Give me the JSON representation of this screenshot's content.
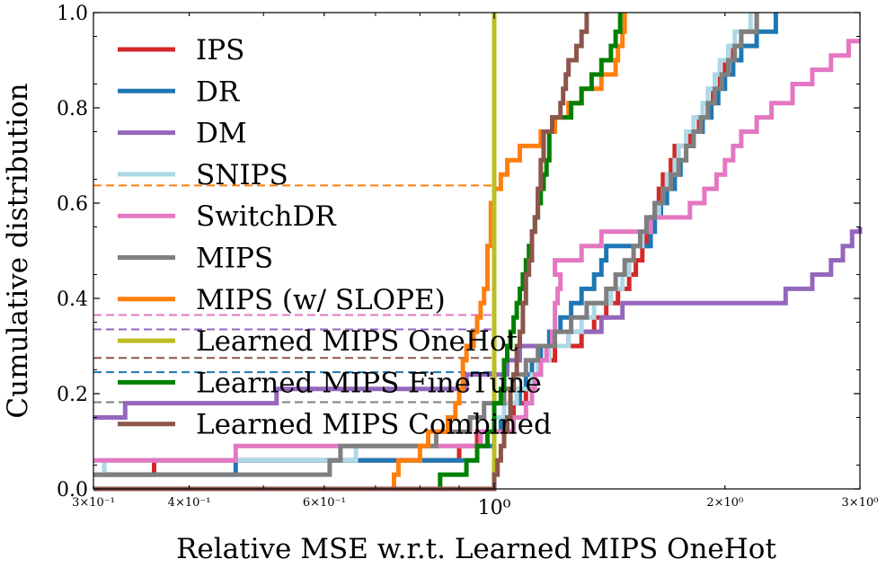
{
  "chart_data": {
    "type": "line",
    "xlabel": "Relative MSE w.r.t. Learned MIPS OneHot",
    "ylabel": "Cumulative distribution",
    "xscale": "log",
    "xlim": [
      0.3,
      3.0
    ],
    "ylim": [
      0.0,
      1.0
    ],
    "x_ticks": [
      {
        "value": 0.3,
        "label": "3×10⁻¹",
        "size": "small"
      },
      {
        "value": 0.4,
        "label": "4×10⁻¹",
        "size": "small"
      },
      {
        "value": 0.6,
        "label": "6×10⁻¹",
        "size": "small"
      },
      {
        "value": 1.0,
        "label": "10⁰",
        "size": "large"
      },
      {
        "value": 2.0,
        "label": "2×10⁰",
        "size": "small"
      },
      {
        "value": 3.0,
        "label": "3×10⁰",
        "size": "small"
      }
    ],
    "y_ticks": [
      "0.0",
      "0.2",
      "0.4",
      "0.6",
      "0.8",
      "1.0"
    ],
    "legend_position": "upper-left",
    "series": [
      {
        "name": "IPS",
        "color": "#d62728",
        "points": [
          [
            0.3,
            0.03
          ],
          [
            0.36,
            0.06
          ],
          [
            0.9,
            0.09
          ],
          [
            0.95,
            0.12
          ],
          [
            1.0,
            0.15
          ],
          [
            1.06,
            0.18
          ],
          [
            1.1,
            0.21
          ],
          [
            1.12,
            0.24
          ],
          [
            1.15,
            0.27
          ],
          [
            1.2,
            0.3
          ],
          [
            1.3,
            0.33
          ],
          [
            1.35,
            0.36
          ],
          [
            1.4,
            0.39
          ],
          [
            1.45,
            0.42
          ],
          [
            1.5,
            0.45
          ],
          [
            1.53,
            0.48
          ],
          [
            1.56,
            0.51
          ],
          [
            1.58,
            0.54
          ],
          [
            1.6,
            0.57
          ],
          [
            1.62,
            0.6
          ],
          [
            1.64,
            0.63
          ],
          [
            1.66,
            0.66
          ],
          [
            1.7,
            0.69
          ],
          [
            1.72,
            0.72
          ],
          [
            1.8,
            0.75
          ],
          [
            1.85,
            0.78
          ],
          [
            1.9,
            0.81
          ],
          [
            1.93,
            0.84
          ],
          [
            1.97,
            0.87
          ],
          [
            2.0,
            0.9
          ],
          [
            2.05,
            0.93
          ],
          [
            2.1,
            0.96
          ],
          [
            2.2,
            1.0
          ]
        ]
      },
      {
        "name": "DR",
        "color": "#1f77b4",
        "points": [
          [
            0.3,
            0.03
          ],
          [
            0.46,
            0.06
          ],
          [
            0.95,
            0.09
          ],
          [
            1.0,
            0.12
          ],
          [
            1.02,
            0.15
          ],
          [
            1.05,
            0.18
          ],
          [
            1.08,
            0.21
          ],
          [
            1.1,
            0.24
          ],
          [
            1.12,
            0.27
          ],
          [
            1.15,
            0.3
          ],
          [
            1.18,
            0.33
          ],
          [
            1.22,
            0.36
          ],
          [
            1.26,
            0.39
          ],
          [
            1.3,
            0.42
          ],
          [
            1.35,
            0.45
          ],
          [
            1.38,
            0.48
          ],
          [
            1.4,
            0.51
          ],
          [
            1.6,
            0.54
          ],
          [
            1.62,
            0.57
          ],
          [
            1.65,
            0.6
          ],
          [
            1.68,
            0.63
          ],
          [
            1.72,
            0.66
          ],
          [
            1.75,
            0.69
          ],
          [
            1.78,
            0.72
          ],
          [
            1.82,
            0.75
          ],
          [
            1.87,
            0.78
          ],
          [
            1.92,
            0.81
          ],
          [
            1.96,
            0.84
          ],
          [
            2.0,
            0.87
          ],
          [
            2.05,
            0.9
          ],
          [
            2.1,
            0.93
          ],
          [
            2.2,
            0.96
          ],
          [
            2.33,
            1.0
          ]
        ]
      },
      {
        "name": "DM",
        "color": "#9467bd",
        "points": [
          [
            0.3,
            0.15
          ],
          [
            0.31,
            0.15
          ],
          [
            0.33,
            0.18
          ],
          [
            0.52,
            0.21
          ],
          [
            0.92,
            0.24
          ],
          [
            1.04,
            0.27
          ],
          [
            1.08,
            0.3
          ],
          [
            1.25,
            0.33
          ],
          [
            1.38,
            0.36
          ],
          [
            1.45,
            0.36
          ],
          [
            1.47,
            0.39
          ],
          [
            2.4,
            0.42
          ],
          [
            2.6,
            0.45
          ],
          [
            2.75,
            0.48
          ],
          [
            2.85,
            0.51
          ],
          [
            2.93,
            0.54
          ],
          [
            3.0,
            0.55
          ]
        ]
      },
      {
        "name": "SNIPS",
        "color": "#add8e6",
        "points": [
          [
            0.3,
            0.03
          ],
          [
            0.31,
            0.06
          ],
          [
            0.66,
            0.09
          ],
          [
            0.96,
            0.12
          ],
          [
            1.0,
            0.15
          ],
          [
            1.03,
            0.18
          ],
          [
            1.07,
            0.21
          ],
          [
            1.12,
            0.24
          ],
          [
            1.14,
            0.27
          ],
          [
            1.18,
            0.3
          ],
          [
            1.25,
            0.33
          ],
          [
            1.3,
            0.36
          ],
          [
            1.35,
            0.39
          ],
          [
            1.42,
            0.42
          ],
          [
            1.47,
            0.45
          ],
          [
            1.5,
            0.48
          ],
          [
            1.52,
            0.51
          ],
          [
            1.56,
            0.54
          ],
          [
            1.6,
            0.57
          ],
          [
            1.64,
            0.6
          ],
          [
            1.66,
            0.63
          ],
          [
            1.68,
            0.66
          ],
          [
            1.72,
            0.69
          ],
          [
            1.74,
            0.72
          ],
          [
            1.78,
            0.75
          ],
          [
            1.82,
            0.78
          ],
          [
            1.87,
            0.81
          ],
          [
            1.9,
            0.84
          ],
          [
            1.94,
            0.87
          ],
          [
            1.97,
            0.9
          ],
          [
            2.02,
            0.93
          ],
          [
            2.06,
            0.96
          ],
          [
            2.16,
            1.0
          ]
        ]
      },
      {
        "name": "SwitchDR",
        "color": "#e377c2",
        "points": [
          [
            0.3,
            0.06
          ],
          [
            0.46,
            0.09
          ],
          [
            0.96,
            0.12
          ],
          [
            1.06,
            0.15
          ],
          [
            1.1,
            0.18
          ],
          [
            1.12,
            0.21
          ],
          [
            1.13,
            0.24
          ],
          [
            1.15,
            0.27
          ],
          [
            1.17,
            0.3
          ],
          [
            1.19,
            0.33
          ],
          [
            1.2,
            0.36
          ],
          [
            1.2,
            0.39
          ],
          [
            1.21,
            0.42
          ],
          [
            1.22,
            0.45
          ],
          [
            1.2,
            0.48
          ],
          [
            1.3,
            0.51
          ],
          [
            1.38,
            0.54
          ],
          [
            1.6,
            0.57
          ],
          [
            1.8,
            0.6
          ],
          [
            1.88,
            0.63
          ],
          [
            1.95,
            0.66
          ],
          [
            2.0,
            0.69
          ],
          [
            2.05,
            0.72
          ],
          [
            2.1,
            0.75
          ],
          [
            2.2,
            0.78
          ],
          [
            2.3,
            0.81
          ],
          [
            2.45,
            0.85
          ],
          [
            2.6,
            0.88
          ],
          [
            2.75,
            0.91
          ],
          [
            2.9,
            0.94
          ],
          [
            3.0,
            0.94
          ]
        ]
      },
      {
        "name": "MIPS",
        "color": "#7f7f7f",
        "points": [
          [
            0.3,
            0.03
          ],
          [
            0.3,
            0.03
          ],
          [
            0.61,
            0.06
          ],
          [
            0.63,
            0.09
          ],
          [
            0.84,
            0.12
          ],
          [
            0.93,
            0.15
          ],
          [
            0.97,
            0.18
          ],
          [
            1.03,
            0.21
          ],
          [
            1.06,
            0.24
          ],
          [
            1.1,
            0.27
          ],
          [
            1.14,
            0.3
          ],
          [
            1.2,
            0.33
          ],
          [
            1.26,
            0.36
          ],
          [
            1.32,
            0.39
          ],
          [
            1.4,
            0.42
          ],
          [
            1.44,
            0.45
          ],
          [
            1.48,
            0.48
          ],
          [
            1.52,
            0.51
          ],
          [
            1.55,
            0.54
          ],
          [
            1.58,
            0.57
          ],
          [
            1.62,
            0.6
          ],
          [
            1.66,
            0.63
          ],
          [
            1.7,
            0.66
          ],
          [
            1.74,
            0.69
          ],
          [
            1.78,
            0.72
          ],
          [
            1.82,
            0.75
          ],
          [
            1.86,
            0.78
          ],
          [
            1.9,
            0.81
          ],
          [
            1.94,
            0.84
          ],
          [
            1.98,
            0.87
          ],
          [
            2.02,
            0.9
          ],
          [
            2.06,
            0.93
          ],
          [
            2.1,
            0.96
          ],
          [
            2.2,
            1.0
          ]
        ]
      },
      {
        "name": "MIPS (w/ SLOPE)",
        "color": "#ff7f0e",
        "points": [
          [
            0.3,
            0.0
          ],
          [
            0.73,
            0.0
          ],
          [
            0.74,
            0.03
          ],
          [
            0.75,
            0.06
          ],
          [
            0.8,
            0.09
          ],
          [
            0.82,
            0.12
          ],
          [
            0.87,
            0.15
          ],
          [
            0.89,
            0.18
          ],
          [
            0.9,
            0.21
          ],
          [
            0.91,
            0.24
          ],
          [
            0.91,
            0.27
          ],
          [
            0.92,
            0.3
          ],
          [
            0.94,
            0.33
          ],
          [
            0.95,
            0.36
          ],
          [
            0.96,
            0.39
          ],
          [
            0.97,
            0.42
          ],
          [
            0.98,
            0.45
          ],
          [
            0.98,
            0.48
          ],
          [
            0.98,
            0.51
          ],
          [
            0.99,
            0.54
          ],
          [
            0.99,
            0.57
          ],
          [
            0.99,
            0.6
          ],
          [
            1.0,
            0.63
          ],
          [
            1.02,
            0.66
          ],
          [
            1.04,
            0.69
          ],
          [
            1.08,
            0.72
          ],
          [
            1.15,
            0.75
          ],
          [
            1.2,
            0.78
          ],
          [
            1.25,
            0.81
          ],
          [
            1.3,
            0.84
          ],
          [
            1.38,
            0.87
          ],
          [
            1.44,
            0.9
          ],
          [
            1.45,
            0.93
          ],
          [
            1.47,
            0.96
          ],
          [
            1.48,
            1.0
          ]
        ]
      },
      {
        "name": "Learned MIPS OneHot",
        "color": "#bcbd22",
        "points": [
          [
            0.3,
            0.0
          ],
          [
            1.0,
            0.0
          ],
          [
            1.0,
            1.0
          ]
        ]
      },
      {
        "name": "Learned MIPS FineTune",
        "color": "#008000",
        "points": [
          [
            0.3,
            0.0
          ],
          [
            0.84,
            0.0
          ],
          [
            0.85,
            0.03
          ],
          [
            0.92,
            0.06
          ],
          [
            0.95,
            0.09
          ],
          [
            0.98,
            0.12
          ],
          [
            1.0,
            0.15
          ],
          [
            1.0,
            0.18
          ],
          [
            1.02,
            0.21
          ],
          [
            1.03,
            0.24
          ],
          [
            1.03,
            0.27
          ],
          [
            1.04,
            0.3
          ],
          [
            1.05,
            0.33
          ],
          [
            1.06,
            0.36
          ],
          [
            1.07,
            0.39
          ],
          [
            1.08,
            0.42
          ],
          [
            1.09,
            0.45
          ],
          [
            1.1,
            0.48
          ],
          [
            1.11,
            0.51
          ],
          [
            1.12,
            0.54
          ],
          [
            1.13,
            0.57
          ],
          [
            1.14,
            0.6
          ],
          [
            1.15,
            0.63
          ],
          [
            1.16,
            0.66
          ],
          [
            1.17,
            0.69
          ],
          [
            1.18,
            0.72
          ],
          [
            1.18,
            0.75
          ],
          [
            1.19,
            0.78
          ],
          [
            1.26,
            0.81
          ],
          [
            1.3,
            0.84
          ],
          [
            1.34,
            0.87
          ],
          [
            1.38,
            0.9
          ],
          [
            1.42,
            0.93
          ],
          [
            1.44,
            0.96
          ],
          [
            1.46,
            1.0
          ]
        ]
      },
      {
        "name": "Learned MIPS Combined",
        "color": "#8c564b",
        "points": [
          [
            0.3,
            0.0
          ],
          [
            0.98,
            0.0
          ],
          [
            1.0,
            0.03
          ],
          [
            1.01,
            0.06
          ],
          [
            1.02,
            0.09
          ],
          [
            1.03,
            0.12
          ],
          [
            1.04,
            0.15
          ],
          [
            1.05,
            0.18
          ],
          [
            1.05,
            0.21
          ],
          [
            1.06,
            0.24
          ],
          [
            1.07,
            0.27
          ],
          [
            1.07,
            0.3
          ],
          [
            1.08,
            0.33
          ],
          [
            1.09,
            0.36
          ],
          [
            1.09,
            0.39
          ],
          [
            1.1,
            0.42
          ],
          [
            1.1,
            0.45
          ],
          [
            1.11,
            0.48
          ],
          [
            1.12,
            0.51
          ],
          [
            1.12,
            0.54
          ],
          [
            1.13,
            0.57
          ],
          [
            1.14,
            0.6
          ],
          [
            1.14,
            0.63
          ],
          [
            1.15,
            0.66
          ],
          [
            1.15,
            0.69
          ],
          [
            1.16,
            0.72
          ],
          [
            1.16,
            0.75
          ],
          [
            1.19,
            0.78
          ],
          [
            1.22,
            0.81
          ],
          [
            1.23,
            0.84
          ],
          [
            1.24,
            0.87
          ],
          [
            1.25,
            0.9
          ],
          [
            1.28,
            0.93
          ],
          [
            1.3,
            0.96
          ],
          [
            1.32,
            1.0
          ]
        ]
      }
    ],
    "reference_lines": [
      {
        "y": 0.637,
        "color": "#ff7f0e"
      },
      {
        "y": 0.365,
        "color": "#e377c2"
      },
      {
        "y": 0.335,
        "color": "#9467bd"
      },
      {
        "y": 0.275,
        "color": "#8c564b"
      },
      {
        "y": 0.245,
        "color": "#1f77b4"
      },
      {
        "y": 0.182,
        "color": "#7f7f7f"
      }
    ]
  }
}
